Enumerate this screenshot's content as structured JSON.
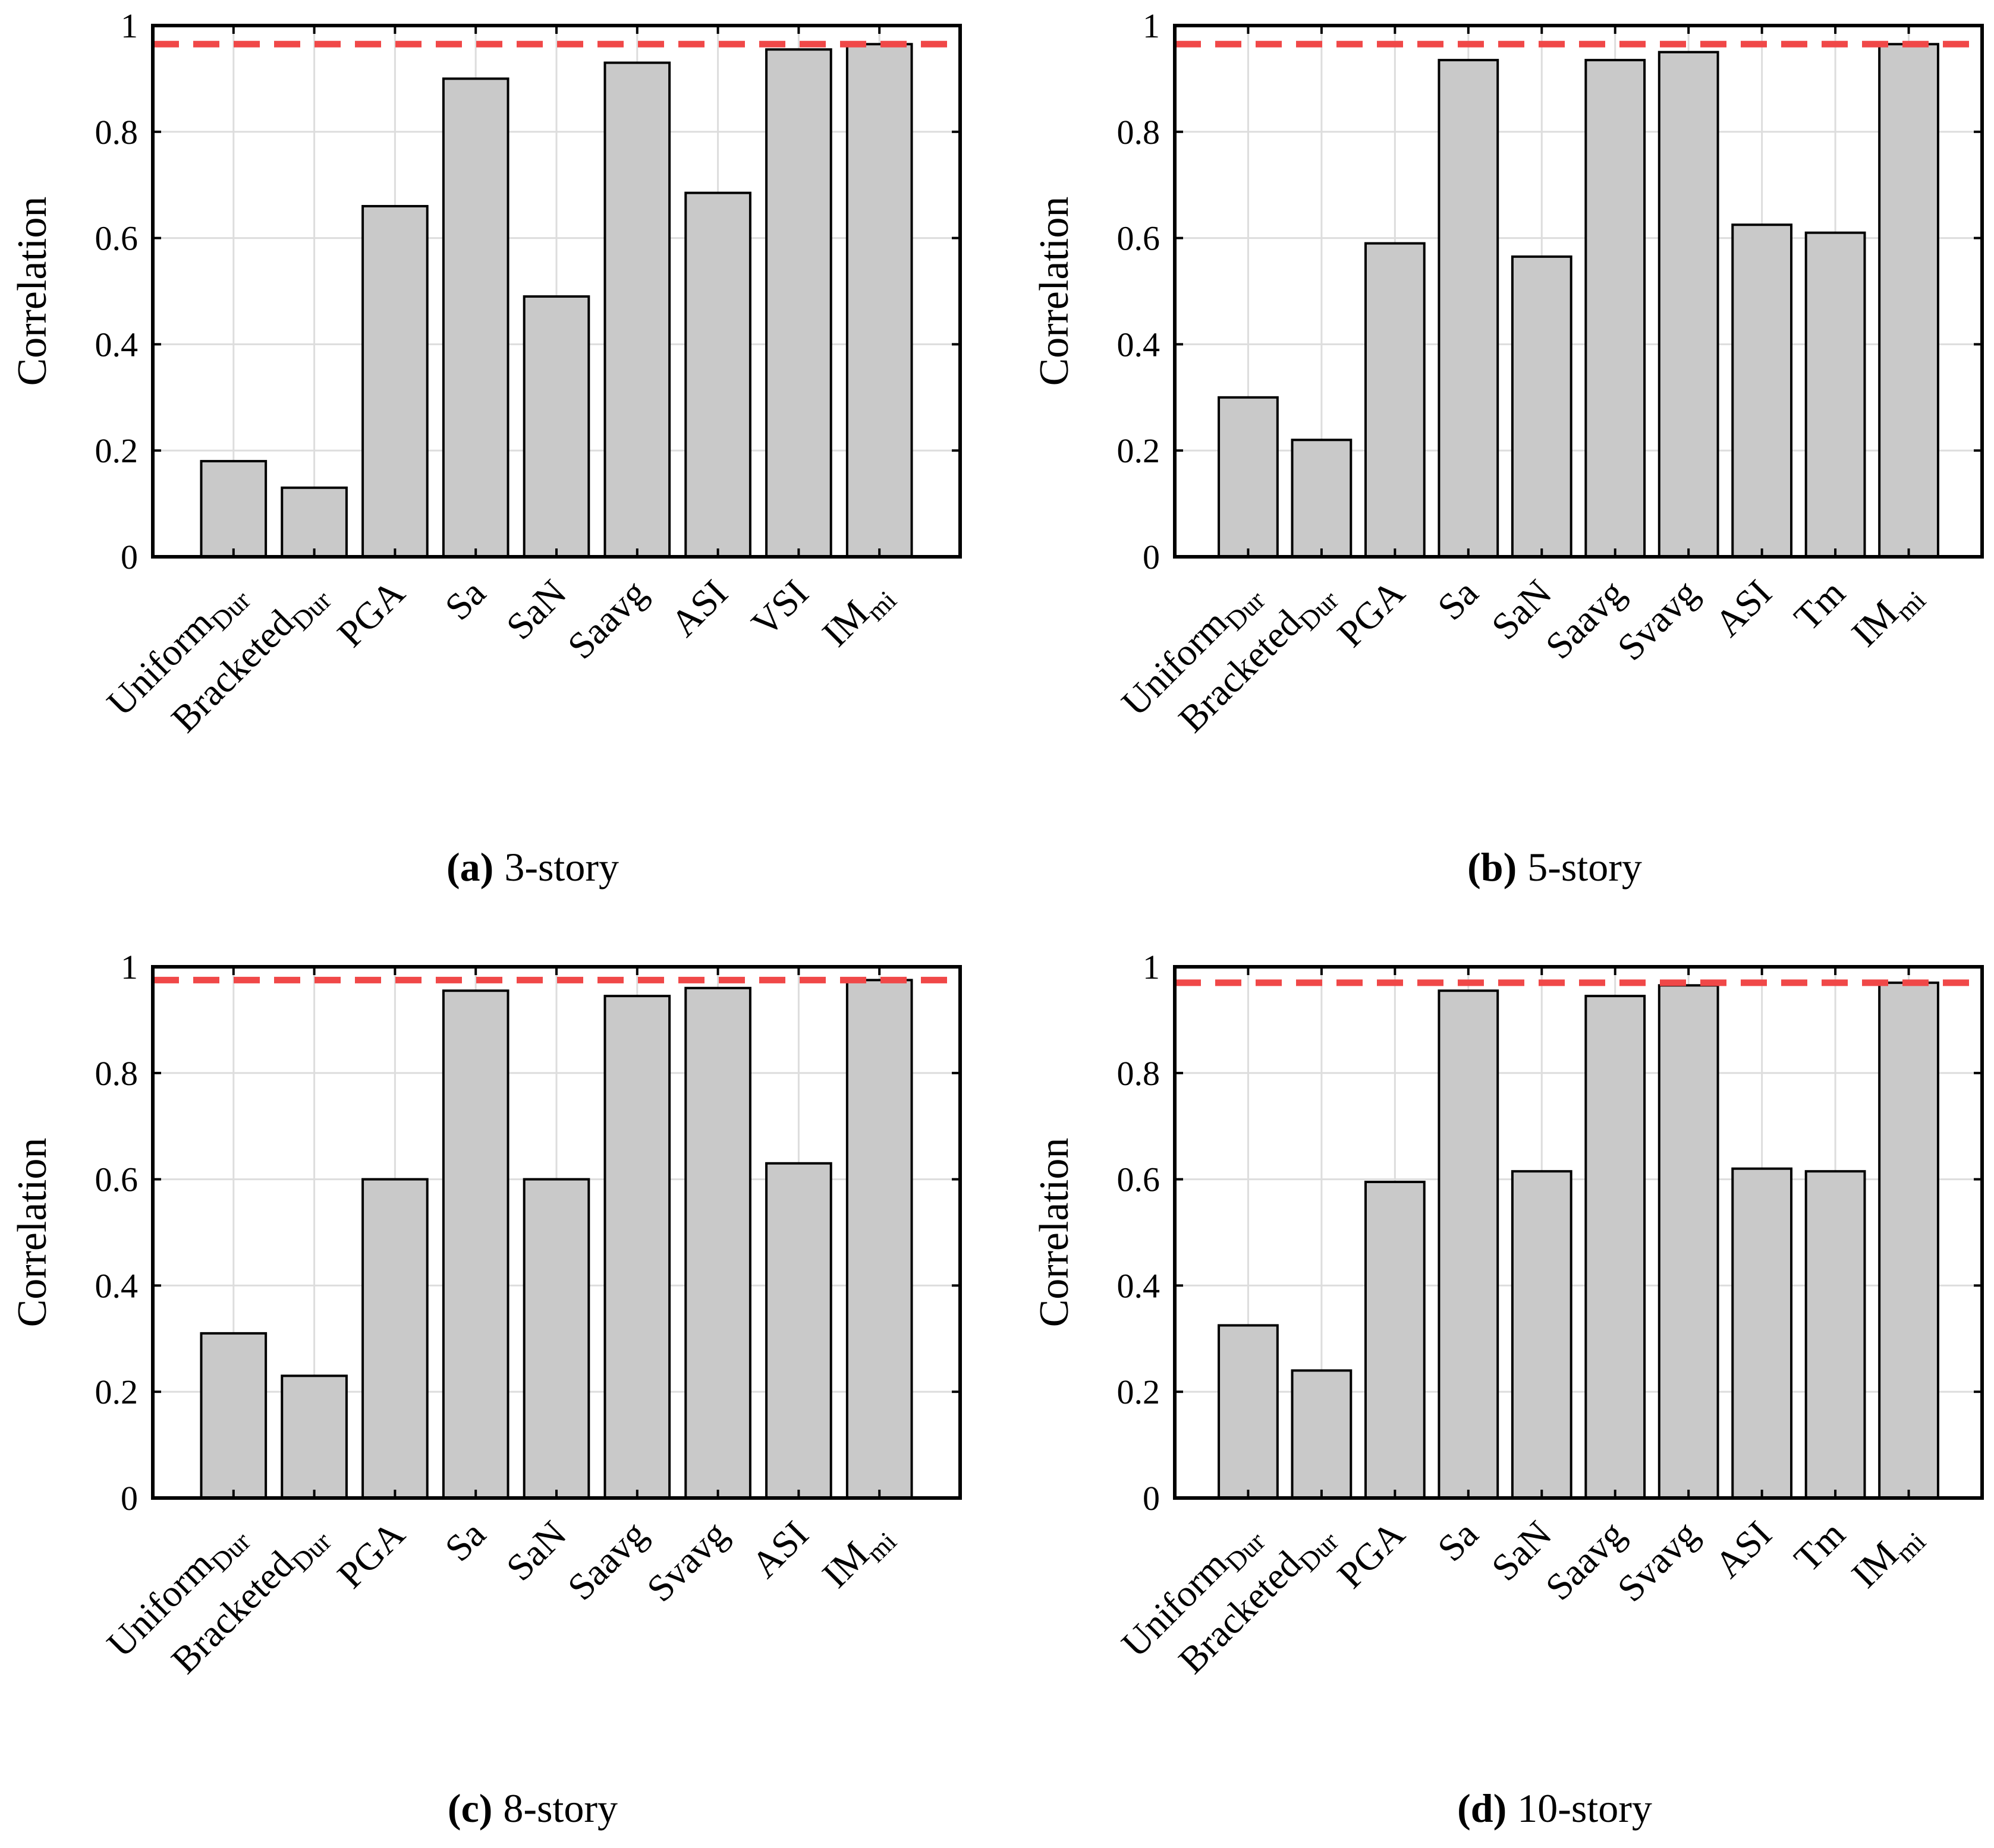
{
  "figure": {
    "colors": {
      "bar_fill": "#c9c9c9",
      "bar_stroke": "#000000",
      "grid": "#dddddd",
      "reference_line": "#f04848"
    }
  },
  "chart_data": [
    {
      "type": "bar",
      "id": "a",
      "caption_label": "(a)",
      "caption_text": "3-story",
      "ylabel": "Correlation",
      "ylim": [
        0,
        1
      ],
      "yticks": [
        0,
        0.2,
        0.4,
        0.6,
        0.8,
        1
      ],
      "ytick_labels": [
        "0",
        "0.2",
        "0.4",
        "0.6",
        "0.8",
        "1"
      ],
      "grid": true,
      "categories": [
        {
          "main": "Uniform",
          "sub": "Dur"
        },
        {
          "main": "Bracketed",
          "sub": "Dur"
        },
        {
          "main": "PGA",
          "sub": ""
        },
        {
          "main": "Sa",
          "sub": ""
        },
        {
          "main": "SaN",
          "sub": ""
        },
        {
          "main": "Saavg",
          "sub": ""
        },
        {
          "main": "ASI",
          "sub": ""
        },
        {
          "main": "VSI",
          "sub": ""
        },
        {
          "main": "IM",
          "sub": "mi"
        }
      ],
      "values": [
        0.18,
        0.13,
        0.66,
        0.9,
        0.49,
        0.93,
        0.685,
        0.955,
        0.965
      ],
      "reference_line": 0.965
    },
    {
      "type": "bar",
      "id": "b",
      "caption_label": "(b)",
      "caption_text": "5-story",
      "ylabel": "Correlation",
      "ylim": [
        0,
        1
      ],
      "yticks": [
        0,
        0.2,
        0.4,
        0.6,
        0.8,
        1
      ],
      "ytick_labels": [
        "0",
        "0.2",
        "0.4",
        "0.6",
        "0.8",
        "1"
      ],
      "grid": true,
      "categories": [
        {
          "main": "Uniform",
          "sub": "Dur"
        },
        {
          "main": "Bracketed",
          "sub": "Dur"
        },
        {
          "main": "PGA",
          "sub": ""
        },
        {
          "main": "Sa",
          "sub": ""
        },
        {
          "main": "SaN",
          "sub": ""
        },
        {
          "main": "Saavg",
          "sub": ""
        },
        {
          "main": "Svavg",
          "sub": ""
        },
        {
          "main": "ASI",
          "sub": ""
        },
        {
          "main": "Tm",
          "sub": ""
        },
        {
          "main": "IM",
          "sub": "mi"
        }
      ],
      "values": [
        0.3,
        0.22,
        0.59,
        0.935,
        0.565,
        0.935,
        0.95,
        0.625,
        0.61,
        0.965
      ],
      "reference_line": 0.965
    },
    {
      "type": "bar",
      "id": "c",
      "caption_label": "(c)",
      "caption_text": "8-story",
      "ylabel": "Correlation",
      "ylim": [
        0,
        1
      ],
      "yticks": [
        0,
        0.2,
        0.4,
        0.6,
        0.8,
        1
      ],
      "ytick_labels": [
        "0",
        "0.2",
        "0.4",
        "0.6",
        "0.8",
        "1"
      ],
      "grid": true,
      "categories": [
        {
          "main": "Uniform",
          "sub": "Dur"
        },
        {
          "main": "Bracketed",
          "sub": "Dur"
        },
        {
          "main": "PGA",
          "sub": ""
        },
        {
          "main": "Sa",
          "sub": ""
        },
        {
          "main": "SaN",
          "sub": ""
        },
        {
          "main": "Saavg",
          "sub": ""
        },
        {
          "main": "Svavg",
          "sub": ""
        },
        {
          "main": "ASI",
          "sub": ""
        },
        {
          "main": "IM",
          "sub": "mi"
        }
      ],
      "values": [
        0.31,
        0.23,
        0.6,
        0.955,
        0.6,
        0.945,
        0.96,
        0.63,
        0.975
      ],
      "reference_line": 0.975
    },
    {
      "type": "bar",
      "id": "d",
      "caption_label": "(d)",
      "caption_text": "10-story",
      "ylabel": "Correlation",
      "ylim": [
        0,
        1
      ],
      "yticks": [
        0,
        0.2,
        0.4,
        0.6,
        0.8,
        1
      ],
      "ytick_labels": [
        "0",
        "0.2",
        "0.4",
        "0.6",
        "0.8",
        "1"
      ],
      "grid": true,
      "categories": [
        {
          "main": "Uniform",
          "sub": "Dur"
        },
        {
          "main": "Bracketed",
          "sub": "Dur"
        },
        {
          "main": "PGA",
          "sub": ""
        },
        {
          "main": "Sa",
          "sub": ""
        },
        {
          "main": "SaN",
          "sub": ""
        },
        {
          "main": "Saavg",
          "sub": ""
        },
        {
          "main": "Svavg",
          "sub": ""
        },
        {
          "main": "ASI",
          "sub": ""
        },
        {
          "main": "Tm",
          "sub": ""
        },
        {
          "main": "IM",
          "sub": "mi"
        }
      ],
      "values": [
        0.325,
        0.24,
        0.595,
        0.955,
        0.615,
        0.945,
        0.965,
        0.62,
        0.615,
        0.97
      ],
      "reference_line": 0.97
    }
  ]
}
